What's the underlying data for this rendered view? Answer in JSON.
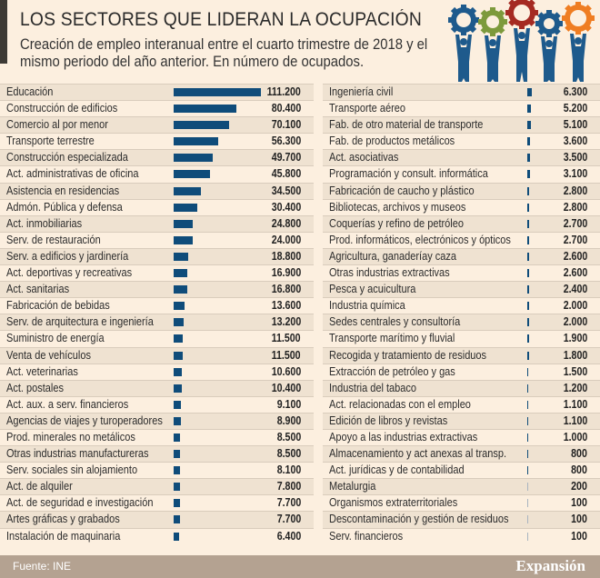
{
  "header": {
    "title": "LOS SECTORES QUE LIDERAN LA OCUPACIÓN",
    "subtitle": "Creación de empleo interanual entre el cuarto trimestre de 2018 y el mismo periodo del año anterior. En número de ocupados."
  },
  "illustration": {
    "description_icon": "people-holding-gears-icon",
    "gear_colors": [
      "#1e5a8c",
      "#7d9a3c",
      "#a52a22",
      "#1e5a8c",
      "#ef7d22"
    ]
  },
  "footer": {
    "source": "Fuente: INE",
    "logo": "Expansión"
  },
  "colors": {
    "bar": "#0f4c7a",
    "background": "#fcefdf",
    "alt_row": "#efe2d1",
    "footer": "#b4a291"
  },
  "chart_data": {
    "type": "bar",
    "orientation": "horizontal",
    "title": "LOS SECTORES QUE LIDERAN LA OCUPACIÓN",
    "categories": [
      "Educación",
      "Construcción de edificios",
      "Comercio al por menor",
      "Transporte terrestre",
      "Construcción especializada",
      "Act. administrativas de oficina",
      "Asistencia en residencias",
      "Admón. Pública y defensa",
      "Act. inmobiliarias",
      "Serv. de restauración",
      "Serv. a edificios y jardinería",
      "Act. deportivas y recreativas",
      "Act. sanitarias",
      "Fabricación de bebidas",
      "Serv. de arquitectura e ingeniería",
      "Suministro de energía",
      "Venta de vehículos",
      "Act. veterinarias",
      "Act. postales",
      "Act. aux. a serv. financieros",
      "Agencias de viajes y turoperadores",
      "Prod. minerales no metálicos",
      "Otras industrias manufactureras",
      "Serv. sociales sin alojamiento",
      "Act. de alquiler",
      "Act. de seguridad e investigación",
      "Artes gráficas y grabados",
      "Instalación de maquinaria",
      "Ingeniería civil",
      "Transporte aéreo",
      "Fab. de otro material de transporte",
      "Fab. de productos metálicos",
      "Act. asociativas",
      "Programación y consult. informática",
      "Fabricación de caucho y plástico",
      "Bibliotecas, archivos y museos",
      "Coquerías y refino de petróleo",
      "Prod. informáticos, electrónicos y ópticos",
      "Agricultura, ganaderíay caza",
      "Otras industrias extractivas",
      "Pesca y acuicultura",
      "Industria química",
      "Sedes centrales y consultoría",
      "Transporte marítimo y fluvial",
      "Recogida y tratamiento de residuos",
      "Extracción de petróleo y gas",
      "Industria del tabaco",
      "Act. relacionadas con el empleo",
      "Edición de libros y revistas",
      "Apoyo a las industrias extractivas",
      "Almacenamiento y act anexas al transp.",
      "Act. jurídicas y de contabilidad",
      "Metalurgia",
      "Organismos extraterritoriales",
      "Descontaminación y gestión de residuos",
      "Serv. financieros"
    ],
    "values": [
      111200,
      80400,
      70100,
      56300,
      49700,
      45800,
      34500,
      30400,
      24800,
      24000,
      18800,
      16900,
      16800,
      13600,
      13200,
      11500,
      11500,
      10600,
      10400,
      9100,
      8900,
      8500,
      8500,
      8100,
      7800,
      7700,
      7700,
      6400,
      6300,
      5200,
      5100,
      3600,
      3500,
      3100,
      2800,
      2800,
      2700,
      2700,
      2600,
      2600,
      2400,
      2000,
      2000,
      1900,
      1800,
      1500,
      1200,
      1100,
      1100,
      1000,
      800,
      800,
      200,
      100,
      100,
      100
    ],
    "value_labels": [
      "111.200",
      "80.400",
      "70.100",
      "56.300",
      "49.700",
      "45.800",
      "34.500",
      "30.400",
      "24.800",
      "24.000",
      "18.800",
      "16.900",
      "16.800",
      "13.600",
      "13.200",
      "11.500",
      "11.500",
      "10.600",
      "10.400",
      "9.100",
      "8.900",
      "8.500",
      "8.500",
      "8.100",
      "7.800",
      "7.700",
      "7.700",
      "6.400",
      "6.300",
      "5.200",
      "5.100",
      "3.600",
      "3.500",
      "3.100",
      "2.800",
      "2.800",
      "2.700",
      "2.700",
      "2.600",
      "2.600",
      "2.400",
      "2.000",
      "2.000",
      "1.900",
      "1.800",
      "1.500",
      "1.200",
      "1.100",
      "1.100",
      "1.000",
      "800",
      "800",
      "200",
      "100",
      "100",
      "100"
    ],
    "xlabel": "",
    "ylabel": "",
    "grid": false
  }
}
